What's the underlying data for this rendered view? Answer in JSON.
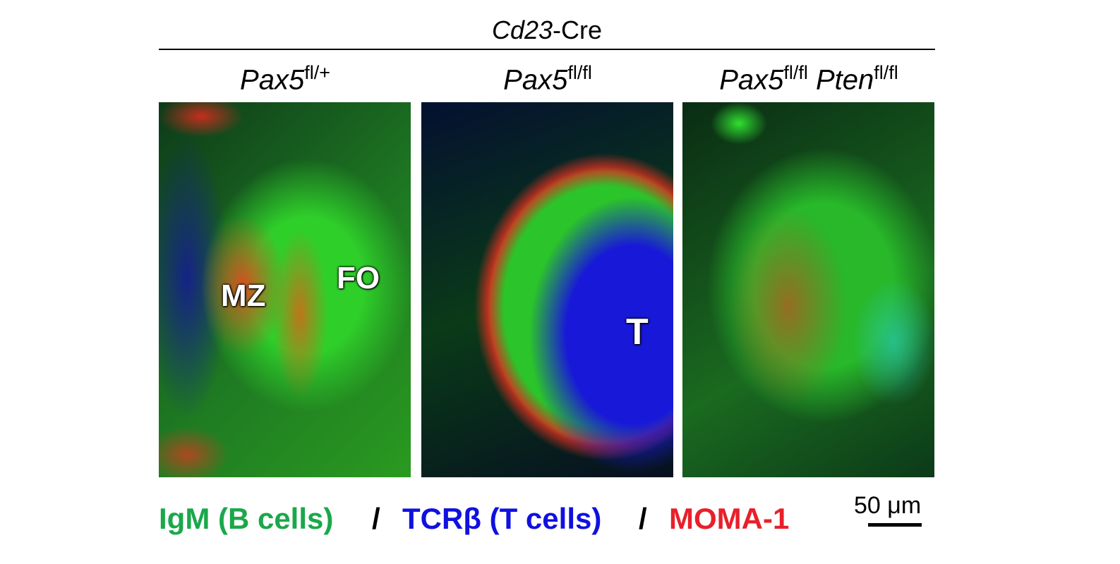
{
  "header": {
    "gene": "Cd23",
    "suffix": "-Cre"
  },
  "panels": [
    {
      "label": [
        {
          "gene": "Pax5",
          "allele": "fl/+"
        }
      ],
      "regions": [
        "MZ",
        "FO"
      ]
    },
    {
      "label": [
        {
          "gene": "Pax5",
          "allele": "fl/fl"
        }
      ],
      "regions": [
        "T"
      ]
    },
    {
      "label": [
        {
          "gene": "Pax5",
          "allele": "fl/fl"
        },
        {
          "gene": "Pten",
          "allele": "fl/fl"
        }
      ]
    }
  ],
  "legend": {
    "items": [
      "IgM (B cells)",
      "TCRβ (T cells)",
      "MOMA-1"
    ],
    "separators": [
      "/",
      "/"
    ]
  },
  "scale_bar": "50 μm"
}
